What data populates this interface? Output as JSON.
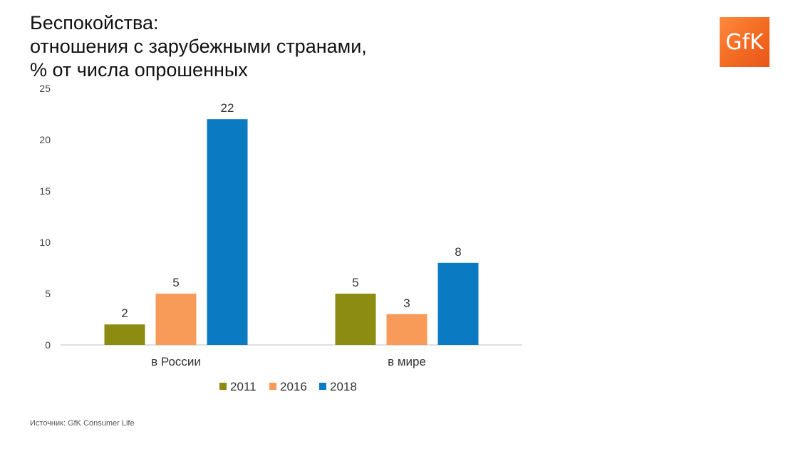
{
  "title_lines": [
    "Беспокойства:",
    "отношения с зарубежными странами,",
    "% от числа опрошенных"
  ],
  "logo": {
    "text": "GfK",
    "color": "#f26a21"
  },
  "source": "Источник: GfK Consumer Life",
  "chart_data": {
    "type": "bar",
    "categories": [
      "в России",
      "в мире"
    ],
    "series": [
      {
        "name": "2011",
        "color": "#8c8c12",
        "values": [
          2,
          5
        ]
      },
      {
        "name": "2016",
        "color": "#f99b58",
        "values": [
          5,
          3
        ]
      },
      {
        "name": "2018",
        "color": "#0a7bc2",
        "values": [
          22,
          8
        ]
      }
    ],
    "ylim": [
      0,
      25
    ],
    "yticks": [
      0,
      5,
      10,
      15,
      20,
      25
    ],
    "grid": false,
    "data_labels": true,
    "legend": "bottom"
  }
}
